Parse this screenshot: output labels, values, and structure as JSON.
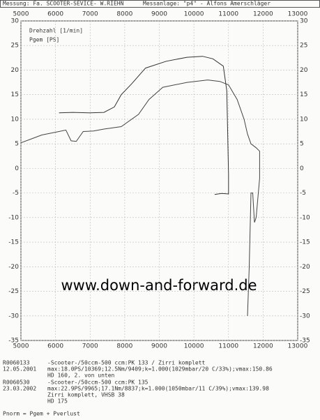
{
  "header": {
    "measurement": "Messung: Fa. SCOOTER-SEVICE- W.RIEHN",
    "rig": "Messanlage: \"p4\" - Alfons Amerschläger"
  },
  "chart_data": {
    "type": "line",
    "annotations": [
      "Drehzahl [1/min]",
      "Pgem [PS]"
    ],
    "watermark": "www.down-and-forward.de",
    "xlim": [
      5000,
      13000
    ],
    "xticks": [
      5000,
      6000,
      7000,
      8000,
      9000,
      10000,
      11000,
      12000,
      13000
    ],
    "ylim": [
      -35,
      30
    ],
    "yticks": [
      30,
      25,
      20,
      15,
      10,
      5,
      0,
      -5,
      -10,
      -15,
      -20,
      -25,
      -30,
      -35
    ],
    "grid": true,
    "series": [
      {
        "color": "#333333",
        "x": [
          6100,
          6500,
          7000,
          7400,
          7700,
          7900,
          8200,
          8600,
          9200,
          9800,
          10250,
          10550,
          10850,
          10950,
          11000,
          11000,
          10800,
          10600
        ],
        "values": [
          11.3,
          11.4,
          11.3,
          11.4,
          12.5,
          15,
          17.2,
          20.4,
          21.8,
          22.6,
          22.8,
          22.3,
          20.8,
          15.8,
          -1.2,
          -5.2,
          -5.1,
          -5.3
        ]
      },
      {
        "color": "#444444",
        "x": [
          5000,
          5300,
          5600,
          6100,
          6300,
          6450,
          6600,
          6800,
          7100,
          7400,
          7900,
          8400,
          8700,
          9100,
          9800,
          10400,
          10750,
          11000,
          11250,
          11450,
          11550,
          11650,
          11800,
          11900,
          11900,
          11800,
          11750,
          11700,
          11650,
          11600,
          11550
        ],
        "values": [
          5.2,
          6,
          6.8,
          7.5,
          7.8,
          5.6,
          5.5,
          7.5,
          7.6,
          8,
          8.5,
          11,
          14,
          16.5,
          17.5,
          18,
          17.7,
          17,
          14,
          10,
          7,
          5,
          4.2,
          3.5,
          -2,
          -10,
          -11,
          -5,
          -5,
          -20,
          -30
        ]
      }
    ]
  },
  "notes": {
    "records": [
      {
        "id": "R0060133",
        "date": "12.05.2001",
        "lines": [
          "-Scooter-/50ccm-500 ccm:PK 133 / Zirri komplett",
          "max:18.0PS/10369;12.5Nm/9409;k=1.000(1029mbar/20 C/33%);vmax:150.86",
          "HD 160, 2. von unten"
        ]
      },
      {
        "id": "R0060530",
        "date": "23.03.2002",
        "lines": [
          "-Scooter-/50ccm-500 ccm:PK 135",
          "max:22.9PS/9965;17.1Nm/8837;k=1.000(1050mbar/11 C/39%);vmax:139.98",
          "Zirri komplett, VHSB 38",
          "HD 175"
        ]
      }
    ],
    "formula": "Pnorm = Pgem + Pverlust"
  }
}
